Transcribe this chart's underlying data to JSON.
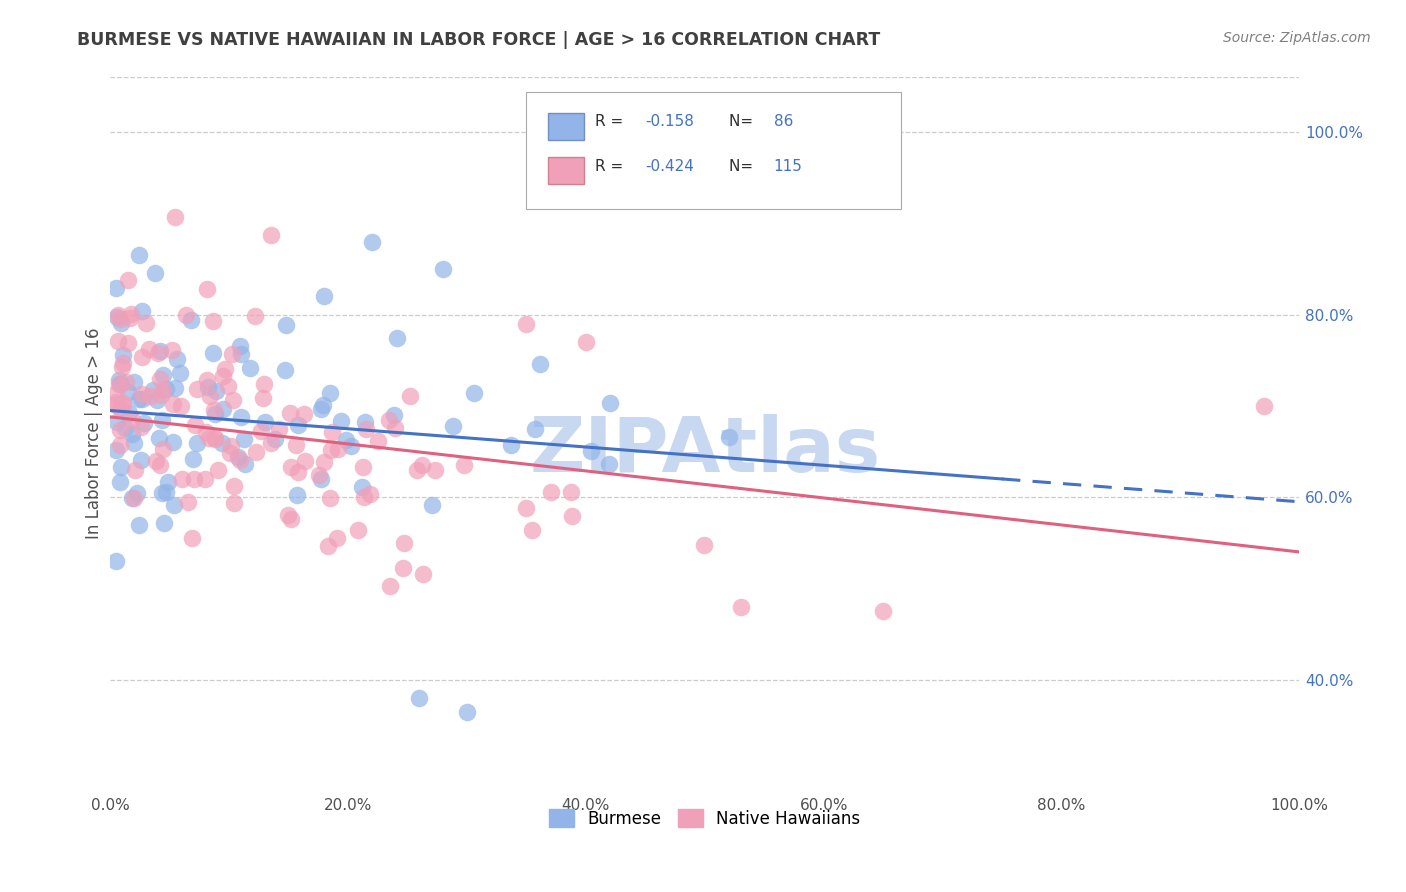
{
  "title": "BURMESE VS NATIVE HAWAIIAN IN LABOR FORCE | AGE > 16 CORRELATION CHART",
  "source": "Source: ZipAtlas.com",
  "ylabel": "In Labor Force | Age > 16",
  "burmese_R": -0.158,
  "burmese_N": 86,
  "hawaiian_R": -0.424,
  "hawaiian_N": 115,
  "burmese_color": "#92b4e8",
  "hawaiian_color": "#f0a0b8",
  "burmese_line_color": "#4472c4",
  "hawaiian_line_color": "#e06080",
  "title_color": "#404040",
  "source_color": "#808080",
  "legend_R_color": "#4472c4",
  "legend_N_color": "#4472c4",
  "background_color": "#ffffff",
  "grid_color": "#cccccc",
  "watermark_color": "#c8d8f0",
  "xlim": [
    0.0,
    1.0
  ],
  "ylim": [
    0.28,
    1.06
  ],
  "x_ticks": [
    0.0,
    0.2,
    0.4,
    0.6,
    0.8,
    1.0
  ],
  "y_ticks": [
    0.4,
    0.6,
    0.8,
    1.0
  ],
  "x_tick_labels": [
    "0.0%",
    "20.0%",
    "40.0%",
    "60.0%",
    "80.0%",
    "100.0%"
  ],
  "y_tick_labels": [
    "40.0%",
    "60.0%",
    "80.0%",
    "100.0%"
  ],
  "legend_label_burmese": "Burmese",
  "legend_label_hawaiian": "Native Hawaiians"
}
